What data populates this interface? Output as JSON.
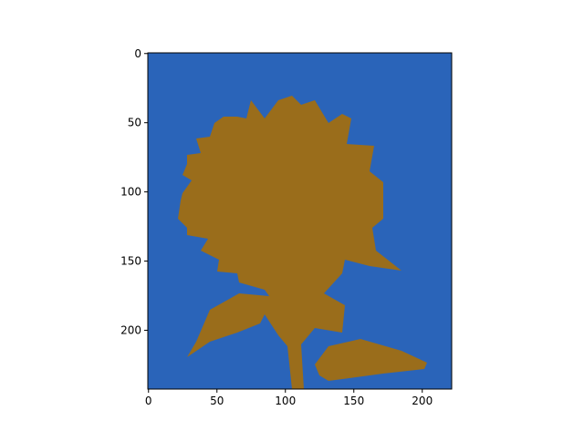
{
  "chart_data": {
    "type": "image",
    "xlim": [
      -0.5,
      221.5
    ],
    "ylim": [
      242.5,
      -0.5
    ],
    "xticks": [
      0,
      50,
      100,
      150,
      200
    ],
    "yticks": [
      0,
      50,
      100,
      150,
      200
    ],
    "background_color": "#2a64b9",
    "foreground_color": "#9a6d1b"
  }
}
